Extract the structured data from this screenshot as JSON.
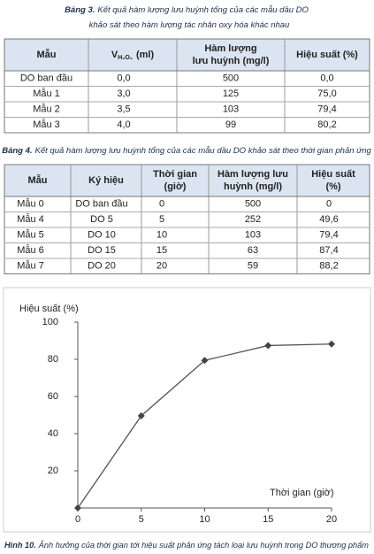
{
  "table3": {
    "caption_label": "Bảng 3.",
    "caption_lines": [
      "Kết quả hàm lượng lưu huỳnh tổng của các mẫu dầu DO",
      "khảo sát theo hàm lượng tác nhân oxy hóa khác nhau"
    ],
    "header": [
      "Mẫu",
      {
        "main": "V",
        "sub": "H₂O₂",
        "unit": "(ml)"
      },
      [
        "Hàm lượng",
        "lưu huỳnh (mg/l)"
      ],
      "Hiệu suất (%)"
    ],
    "rows": [
      [
        "DO ban đầu",
        "0,0",
        "500",
        "0,0"
      ],
      [
        "Mẫu 1",
        "3,0",
        "125",
        "75,0"
      ],
      [
        "Mẫu 2",
        "3,5",
        "103",
        "79,4"
      ],
      [
        "Mẫu 3",
        "4,0",
        "99",
        "80,2"
      ]
    ]
  },
  "table4": {
    "caption_label": "Bảng 4.",
    "caption_lines": [
      "Kết quả hàm lượng lưu huỳnh tổng của các mẫu dầu DO khảo sát theo thời gian phản ứng"
    ],
    "header": [
      "Mẫu",
      "Ký hiệu",
      [
        "Thời gian",
        "(giờ)"
      ],
      [
        "Hàm lượng lưu",
        "huỳnh (mg/l)"
      ],
      [
        "Hiệu suất",
        "(%)"
      ]
    ],
    "rows": [
      [
        "Mẫu 0",
        "DO ban đầu",
        "0",
        "500",
        "0"
      ],
      [
        "Mẫu 4",
        "DO 5",
        "5",
        "252",
        "49,6"
      ],
      [
        "Mẫu 5",
        "DO 10",
        "10",
        "103",
        "79,4"
      ],
      [
        "Mẫu 6",
        "DO 15",
        "15",
        "63",
        "87,4"
      ],
      [
        "Mẫu 7",
        "DO 20",
        "20",
        "59",
        "88,2"
      ]
    ]
  },
  "chart_data": {
    "type": "line",
    "y_label": "Hiệu suất (%)",
    "x_label": "Thời gian (giờ)",
    "x": [
      0,
      5,
      10,
      15,
      20
    ],
    "values": [
      0,
      49.6,
      79.4,
      87.4,
      88.2
    ],
    "color": "#555555",
    "xlim": [
      0,
      20
    ],
    "xticks": [
      0,
      5,
      10,
      15,
      20
    ],
    "ylim": [
      0,
      100
    ],
    "yticks": [
      20,
      40,
      60,
      80,
      100
    ]
  },
  "figure_caption": {
    "label": "Hình 10.",
    "text": "Ảnh hưởng của thời gian tới hiệu suất phản ứng tách loại lưu huỳnh trong DO thương phẩm"
  }
}
